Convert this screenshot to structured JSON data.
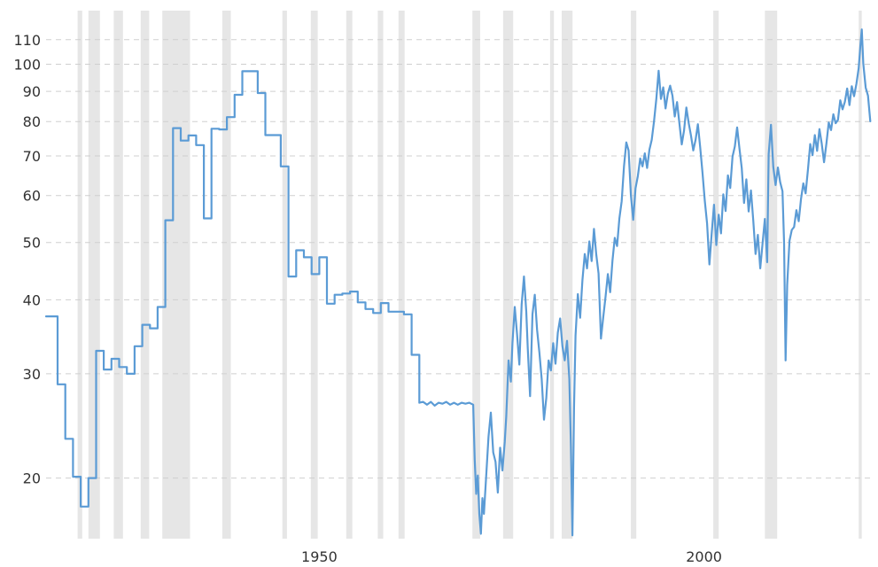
{
  "chart_data": {
    "type": "line",
    "title": "",
    "xlabel": "",
    "ylabel": "",
    "y_scale": "log",
    "xlim": [
      1914.5,
      2021.8
    ],
    "ylim": [
      15.8,
      119
    ],
    "grid": "horizontal dashed",
    "legend": "none",
    "colors": {
      "line": "#5b9bd5",
      "bands": "#e6e6e6",
      "grid": "#cfcfcf",
      "text": "#333333"
    },
    "x_ticks": [
      {
        "value": 1950,
        "label": "1950"
      },
      {
        "value": 2000,
        "label": "2000"
      }
    ],
    "y_ticks": [
      {
        "value": 20,
        "label": "20"
      },
      {
        "value": 30,
        "label": "30"
      },
      {
        "value": 40,
        "label": "40"
      },
      {
        "value": 50,
        "label": "50"
      },
      {
        "value": 60,
        "label": "60"
      },
      {
        "value": 70,
        "label": "70"
      },
      {
        "value": 80,
        "label": "80"
      },
      {
        "value": 90,
        "label": "90"
      },
      {
        "value": 100,
        "label": "100"
      },
      {
        "value": 110,
        "label": "110"
      }
    ],
    "shaded_periods": [
      [
        1918.6,
        1919.2
      ],
      [
        1920.0,
        1921.5
      ],
      [
        1923.3,
        1924.5
      ],
      [
        1926.8,
        1927.9
      ],
      [
        1929.6,
        1933.2
      ],
      [
        1937.4,
        1938.5
      ],
      [
        1945.2,
        1945.8
      ],
      [
        1948.9,
        1949.8
      ],
      [
        1953.5,
        1954.3
      ],
      [
        1957.6,
        1958.3
      ],
      [
        1960.3,
        1961.1
      ],
      [
        1969.9,
        1970.9
      ],
      [
        1973.9,
        1975.2
      ],
      [
        1980.0,
        1980.5
      ],
      [
        1981.5,
        1982.9
      ],
      [
        1990.5,
        1991.2
      ],
      [
        2001.2,
        2001.9
      ],
      [
        2007.9,
        2009.5
      ],
      [
        2020.1,
        2020.5
      ]
    ],
    "series": [
      {
        "points": [
          [
            1914.5,
            37.5
          ],
          [
            1916,
            37.5
          ],
          [
            1916,
            28.8
          ],
          [
            1917,
            28.8
          ],
          [
            1917,
            23.3
          ],
          [
            1918,
            23.3
          ],
          [
            1918,
            20.1
          ],
          [
            1919,
            20.1
          ],
          [
            1919,
            17.9
          ],
          [
            1920,
            17.9
          ],
          [
            1920,
            20
          ],
          [
            1921,
            20
          ],
          [
            1921,
            32.8
          ],
          [
            1922,
            32.8
          ],
          [
            1922,
            30.5
          ],
          [
            1923,
            30.5
          ],
          [
            1923,
            31.8
          ],
          [
            1924,
            31.8
          ],
          [
            1924,
            30.8
          ],
          [
            1925,
            30.8
          ],
          [
            1925,
            30
          ],
          [
            1926,
            30
          ],
          [
            1926,
            33.4
          ],
          [
            1927,
            33.4
          ],
          [
            1927,
            36.3
          ],
          [
            1928,
            36.3
          ],
          [
            1928,
            35.8
          ],
          [
            1929,
            35.8
          ],
          [
            1929,
            38.9
          ],
          [
            1930,
            38.9
          ],
          [
            1930,
            54.5
          ],
          [
            1931,
            54.5
          ],
          [
            1931,
            78
          ],
          [
            1932,
            78
          ],
          [
            1932,
            74.3
          ],
          [
            1933,
            74.3
          ],
          [
            1933,
            75.8
          ],
          [
            1934,
            75.8
          ],
          [
            1934,
            73
          ],
          [
            1935,
            73
          ],
          [
            1935,
            54.9
          ],
          [
            1936,
            54.9
          ],
          [
            1936,
            77.8
          ],
          [
            1937,
            77.8
          ],
          [
            1937,
            77.6
          ],
          [
            1938,
            77.6
          ],
          [
            1938,
            81.4
          ],
          [
            1939,
            81.4
          ],
          [
            1939,
            88.8
          ],
          [
            1940,
            88.8
          ],
          [
            1940,
            97.3
          ],
          [
            1942,
            97.3
          ],
          [
            1942,
            89.4
          ],
          [
            1943,
            89.4
          ],
          [
            1943,
            75.9
          ],
          [
            1945,
            75.9
          ],
          [
            1945,
            67.2
          ],
          [
            1946,
            67.2
          ],
          [
            1946,
            43.8
          ],
          [
            1947,
            43.8
          ],
          [
            1947,
            48.5
          ],
          [
            1948,
            48.5
          ],
          [
            1948,
            47.2
          ],
          [
            1949,
            47.2
          ],
          [
            1949,
            44.2
          ],
          [
            1950,
            44.2
          ],
          [
            1950,
            47.2
          ],
          [
            1951,
            47.2
          ],
          [
            1951,
            39.4
          ],
          [
            1952,
            39.4
          ],
          [
            1952,
            40.8
          ],
          [
            1953,
            40.8
          ],
          [
            1953,
            41
          ],
          [
            1954,
            41
          ],
          [
            1954,
            41.3
          ],
          [
            1955,
            41.3
          ],
          [
            1955,
            39.6
          ],
          [
            1956,
            39.6
          ],
          [
            1956,
            38.6
          ],
          [
            1957,
            38.6
          ],
          [
            1957,
            38
          ],
          [
            1958,
            38
          ],
          [
            1958,
            39.5
          ],
          [
            1959,
            39.5
          ],
          [
            1959,
            38.2
          ],
          [
            1961,
            38.2
          ],
          [
            1961,
            37.8
          ],
          [
            1962,
            37.8
          ],
          [
            1962,
            32.3
          ],
          [
            1963,
            32.3
          ],
          [
            1963,
            26.8
          ],
          [
            1963.5,
            26.9
          ],
          [
            1964,
            26.6
          ],
          [
            1964.5,
            26.9
          ],
          [
            1965,
            26.5
          ],
          [
            1965.5,
            26.8
          ],
          [
            1966,
            26.7
          ],
          [
            1966.5,
            26.9
          ],
          [
            1967,
            26.6
          ],
          [
            1967.5,
            26.8
          ],
          [
            1968,
            26.6
          ],
          [
            1968.5,
            26.8
          ],
          [
            1969,
            26.7
          ],
          [
            1969.5,
            26.8
          ],
          [
            1970,
            26.6
          ],
          [
            1970.2,
            21.5
          ],
          [
            1970.4,
            18.8
          ],
          [
            1970.6,
            20.2
          ],
          [
            1970.8,
            17.4
          ],
          [
            1971,
            16.1
          ],
          [
            1971.2,
            18.5
          ],
          [
            1971.4,
            17.4
          ],
          [
            1971.7,
            20.2
          ],
          [
            1972,
            23.5
          ],
          [
            1972.3,
            25.8
          ],
          [
            1972.6,
            22.1
          ],
          [
            1972.9,
            21.3
          ],
          [
            1973.2,
            18.9
          ],
          [
            1973.5,
            22.5
          ],
          [
            1973.8,
            20.6
          ],
          [
            1974.1,
            23
          ],
          [
            1974.3,
            25.4
          ],
          [
            1974.6,
            31.6
          ],
          [
            1974.9,
            29.1
          ],
          [
            1975.1,
            33.8
          ],
          [
            1975.4,
            38.9
          ],
          [
            1975.7,
            35
          ],
          [
            1976,
            31.1
          ],
          [
            1976.3,
            39.3
          ],
          [
            1976.6,
            43.8
          ],
          [
            1976.9,
            38.2
          ],
          [
            1977.1,
            33.1
          ],
          [
            1977.4,
            27.5
          ],
          [
            1977.7,
            37.8
          ],
          [
            1978,
            40.8
          ],
          [
            1978.3,
            35.6
          ],
          [
            1978.6,
            32.6
          ],
          [
            1978.9,
            29.4
          ],
          [
            1979.2,
            25.1
          ],
          [
            1979.5,
            27.3
          ],
          [
            1979.8,
            31.6
          ],
          [
            1980.1,
            30.4
          ],
          [
            1980.4,
            33.8
          ],
          [
            1980.7,
            31.2
          ],
          [
            1981,
            35.2
          ],
          [
            1981.3,
            37.2
          ],
          [
            1981.6,
            33.4
          ],
          [
            1981.9,
            31.6
          ],
          [
            1982.2,
            34.1
          ],
          [
            1982.5,
            29.4
          ],
          [
            1982.7,
            22.6
          ],
          [
            1982.9,
            16
          ],
          [
            1983.1,
            26.3
          ],
          [
            1983.3,
            34.8
          ],
          [
            1983.6,
            40.9
          ],
          [
            1983.9,
            37.3
          ],
          [
            1984.2,
            43.2
          ],
          [
            1984.5,
            47.8
          ],
          [
            1984.8,
            45.2
          ],
          [
            1985.1,
            50.2
          ],
          [
            1985.4,
            46.5
          ],
          [
            1985.7,
            52.7
          ],
          [
            1986,
            47.7
          ],
          [
            1986.3,
            44.3
          ],
          [
            1986.6,
            34.4
          ],
          [
            1986.9,
            37.4
          ],
          [
            1987.2,
            40.5
          ],
          [
            1987.5,
            44.2
          ],
          [
            1987.8,
            41.2
          ],
          [
            1988.1,
            46.6
          ],
          [
            1988.4,
            50.9
          ],
          [
            1988.7,
            49.3
          ],
          [
            1989,
            54.9
          ],
          [
            1989.3,
            58.7
          ],
          [
            1989.6,
            67.2
          ],
          [
            1989.9,
            73.8
          ],
          [
            1990.2,
            71.5
          ],
          [
            1990.5,
            60.1
          ],
          [
            1990.8,
            54.6
          ],
          [
            1991.1,
            61.7
          ],
          [
            1991.4,
            64.7
          ],
          [
            1991.7,
            69.3
          ],
          [
            1992,
            67.2
          ],
          [
            1992.3,
            70.7
          ],
          [
            1992.6,
            66.8
          ],
          [
            1992.9,
            71.7
          ],
          [
            1993.2,
            74.5
          ],
          [
            1993.5,
            80.1
          ],
          [
            1993.8,
            87.4
          ],
          [
            1994.1,
            97.5
          ],
          [
            1994.4,
            87.4
          ],
          [
            1994.7,
            91.4
          ],
          [
            1995,
            84.2
          ],
          [
            1995.3,
            89.2
          ],
          [
            1995.6,
            92
          ],
          [
            1995.9,
            88.5
          ],
          [
            1996.2,
            81.6
          ],
          [
            1996.5,
            86.3
          ],
          [
            1996.8,
            79.3
          ],
          [
            1997.1,
            73.2
          ],
          [
            1997.4,
            77.3
          ],
          [
            1997.7,
            84.5
          ],
          [
            1998,
            79.6
          ],
          [
            1998.3,
            75.8
          ],
          [
            1998.6,
            71.5
          ],
          [
            1998.9,
            74.5
          ],
          [
            1999.2,
            79.2
          ],
          [
            1999.5,
            72.4
          ],
          [
            1999.8,
            65.6
          ],
          [
            2000.1,
            58.8
          ],
          [
            2000.4,
            53.8
          ],
          [
            2000.7,
            45.9
          ],
          [
            2001,
            51.8
          ],
          [
            2001.3,
            57.9
          ],
          [
            2001.6,
            49.5
          ],
          [
            2001.9,
            55.7
          ],
          [
            2002.2,
            51.8
          ],
          [
            2002.5,
            60.3
          ],
          [
            2002.8,
            56.5
          ],
          [
            2003.1,
            64.9
          ],
          [
            2003.4,
            61.8
          ],
          [
            2003.7,
            69.8
          ],
          [
            2004,
            72.6
          ],
          [
            2004.3,
            78.2
          ],
          [
            2004.6,
            72.1
          ],
          [
            2004.9,
            66.8
          ],
          [
            2005.2,
            58.3
          ],
          [
            2005.5,
            63.9
          ],
          [
            2005.8,
            56.4
          ],
          [
            2006.1,
            61.2
          ],
          [
            2006.4,
            54.5
          ],
          [
            2006.7,
            47.8
          ],
          [
            2007,
            51.5
          ],
          [
            2007.3,
            45.2
          ],
          [
            2007.6,
            49.8
          ],
          [
            2007.9,
            54.8
          ],
          [
            2008.2,
            46.3
          ],
          [
            2008.4,
            70.5
          ],
          [
            2008.7,
            79
          ],
          [
            2009,
            67.1
          ],
          [
            2009.3,
            62.5
          ],
          [
            2009.6,
            66.9
          ],
          [
            2009.9,
            63.2
          ],
          [
            2010.2,
            61
          ],
          [
            2010.4,
            49.9
          ],
          [
            2010.6,
            31.6
          ],
          [
            2010.8,
            42.4
          ],
          [
            2011.1,
            50.3
          ],
          [
            2011.4,
            52.5
          ],
          [
            2011.7,
            53.1
          ],
          [
            2012,
            56.7
          ],
          [
            2012.3,
            54.3
          ],
          [
            2012.6,
            59.2
          ],
          [
            2012.9,
            62.9
          ],
          [
            2013.2,
            60.5
          ],
          [
            2013.5,
            66.3
          ],
          [
            2013.8,
            73.3
          ],
          [
            2014.1,
            70.2
          ],
          [
            2014.4,
            75.9
          ],
          [
            2014.7,
            71.4
          ],
          [
            2015,
            77.7
          ],
          [
            2015.3,
            73.4
          ],
          [
            2015.6,
            68.3
          ],
          [
            2015.9,
            73.5
          ],
          [
            2016.2,
            79.7
          ],
          [
            2016.5,
            77.4
          ],
          [
            2016.8,
            82.3
          ],
          [
            2017.1,
            79.5
          ],
          [
            2017.4,
            80.5
          ],
          [
            2017.7,
            86.9
          ],
          [
            2018,
            83.9
          ],
          [
            2018.3,
            86.4
          ],
          [
            2018.6,
            91
          ],
          [
            2018.9,
            85.3
          ],
          [
            2019.2,
            91.8
          ],
          [
            2019.5,
            88.3
          ],
          [
            2019.8,
            92.6
          ],
          [
            2020.1,
            98.5
          ],
          [
            2020.3,
            107
          ],
          [
            2020.5,
            114.5
          ],
          [
            2020.7,
            100.2
          ],
          [
            2021,
            91.3
          ],
          [
            2021.3,
            88.5
          ],
          [
            2021.6,
            80.1
          ]
        ]
      }
    ]
  }
}
